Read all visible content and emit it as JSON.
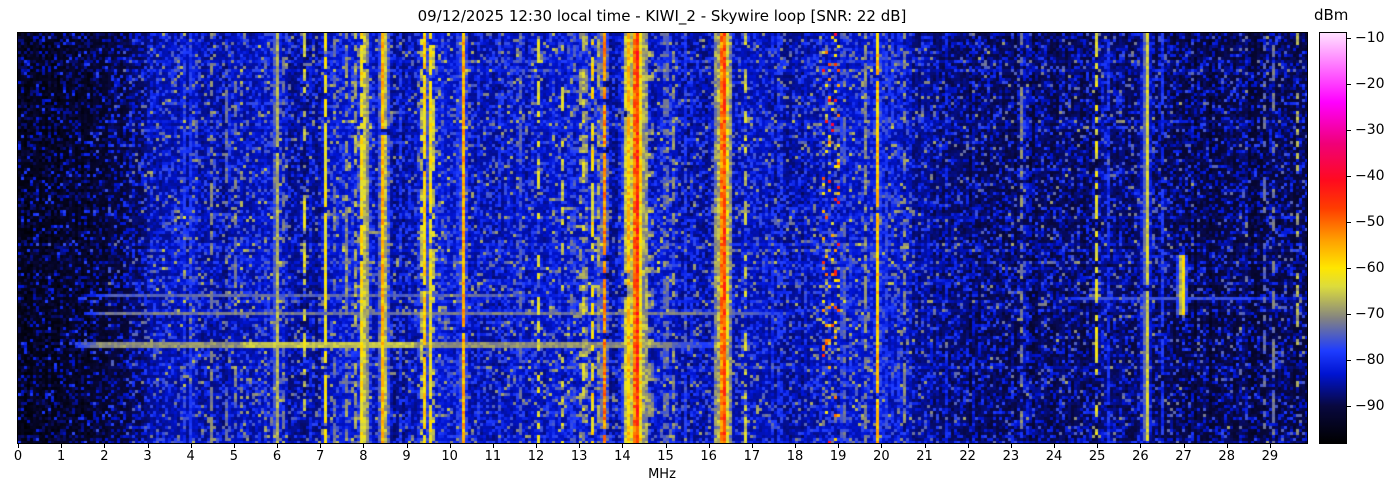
{
  "title": "09/12/2025 12:30 local time - KIWI_2 - Skywire loop [SNR: 22 dB]",
  "axis": {
    "xlabel": "MHz",
    "xticks": [
      0,
      1,
      2,
      3,
      4,
      5,
      6,
      7,
      8,
      9,
      10,
      11,
      12,
      13,
      14,
      15,
      16,
      17,
      18,
      19,
      20,
      21,
      22,
      23,
      24,
      25,
      26,
      27,
      28,
      29
    ]
  },
  "colorbar": {
    "label": "dBm",
    "vmin": -98,
    "vmax": -9,
    "ticks": [
      -10,
      -20,
      -30,
      -40,
      -50,
      -60,
      -70,
      -80,
      -90
    ],
    "tick_prefix": "−",
    "stops": [
      [
        -98,
        "#000000"
      ],
      [
        -90,
        "#08083f"
      ],
      [
        -83,
        "#0014d2"
      ],
      [
        -78,
        "#1e3cff"
      ],
      [
        -71,
        "#828282"
      ],
      [
        -64,
        "#dcdc3c"
      ],
      [
        -60,
        "#ffe600"
      ],
      [
        -54,
        "#ffa000"
      ],
      [
        -47,
        "#ff3c00"
      ],
      [
        -41,
        "#ff0a1e"
      ],
      [
        -33,
        "#f00078"
      ],
      [
        -24,
        "#ff00ff"
      ],
      [
        -9,
        "#ffe1ff"
      ]
    ]
  },
  "chart_data": {
    "type": "heatmap",
    "title": "09/12/2025 12:30 local time - KIWI_2 - Skywire loop [SNR: 22 dB]",
    "xlabel": "MHz",
    "x_range": [
      0,
      29.86
    ],
    "y_axis": "time (unlabeled, top = newest)",
    "value_unit": "dBm",
    "value_range": [
      -98,
      -9
    ],
    "seed": 42,
    "noise_floor_curve": [
      [
        0,
        -96.5
      ],
      [
        0.8,
        -96
      ],
      [
        1.6,
        -95
      ],
      [
        2.4,
        -93
      ],
      [
        2.8,
        -90
      ],
      [
        3.1,
        -87.5
      ],
      [
        3.6,
        -86
      ],
      [
        4.3,
        -86.5
      ],
      [
        4.7,
        -88
      ],
      [
        5.2,
        -86.5
      ],
      [
        5.5,
        -85.5
      ],
      [
        6.1,
        -86
      ],
      [
        6.35,
        -89
      ],
      [
        6.9,
        -88.5
      ],
      [
        7.1,
        -85.5
      ],
      [
        7.6,
        -84.5
      ],
      [
        8.15,
        -85
      ],
      [
        8.5,
        -88
      ],
      [
        8.8,
        -89
      ],
      [
        9.2,
        -86
      ],
      [
        9.5,
        -85
      ],
      [
        10.2,
        -85.5
      ],
      [
        10.6,
        -88
      ],
      [
        11.0,
        -87
      ],
      [
        11.5,
        -86
      ],
      [
        12.2,
        -86
      ],
      [
        12.9,
        -85.5
      ],
      [
        13.5,
        -86
      ],
      [
        13.75,
        -89.5
      ],
      [
        14.05,
        -88
      ],
      [
        14.5,
        -86
      ],
      [
        14.9,
        -85.5
      ],
      [
        15.5,
        -87.5
      ],
      [
        16.0,
        -88
      ],
      [
        16.6,
        -86.5
      ],
      [
        17.3,
        -87
      ],
      [
        18.3,
        -87.5
      ],
      [
        18.7,
        -86
      ],
      [
        19.3,
        -86
      ],
      [
        20.4,
        -86.5
      ],
      [
        21.0,
        -88.5
      ],
      [
        21.6,
        -90
      ],
      [
        22.3,
        -91
      ],
      [
        23.0,
        -91
      ],
      [
        23.8,
        -91.5
      ],
      [
        24.6,
        -91
      ],
      [
        25.3,
        -90
      ],
      [
        26.2,
        -90.5
      ],
      [
        27.0,
        -92
      ],
      [
        27.8,
        -92.5
      ],
      [
        28.6,
        -92
      ],
      [
        29.3,
        -92.5
      ],
      [
        29.9,
        -92
      ]
    ],
    "signals": [
      {
        "f": 5.98,
        "w": 0.035,
        "level": -60,
        "duty": 0.97,
        "jit": 3
      },
      {
        "f": 7.11,
        "w": 0.035,
        "level": -61,
        "duty": 0.9,
        "jit": 3
      },
      {
        "f": 7.95,
        "w": 0.055,
        "level": -61,
        "duty": 0.95,
        "jit": 4
      },
      {
        "f": 8.05,
        "w": 0.05,
        "level": -58,
        "duty": 0.97,
        "jit": 4
      },
      {
        "f": 8.46,
        "w": 0.04,
        "level": -50,
        "duty": 0.98,
        "jit": 4
      },
      {
        "f": 9.32,
        "w": 0.035,
        "level": -62,
        "duty": 0.6,
        "jit": 4
      },
      {
        "f": 9.41,
        "w": 0.045,
        "level": -59,
        "duty": 0.92,
        "jit": 4
      },
      {
        "f": 9.53,
        "w": 0.045,
        "level": -58,
        "duty": 0.95,
        "jit": 4
      },
      {
        "f": 9.63,
        "w": 0.035,
        "level": -63,
        "duty": 0.55,
        "jit": 4
      },
      {
        "f": 10.31,
        "w": 0.045,
        "level": -55,
        "duty": 0.97,
        "jit": 4
      },
      {
        "f": 13.12,
        "w": 0.035,
        "level": -57,
        "duty": 0.6,
        "jit": 5
      },
      {
        "f": 13.3,
        "w": 0.035,
        "level": -61,
        "duty": 0.55,
        "jit": 5
      },
      {
        "f": 13.57,
        "w": 0.04,
        "level": -52,
        "duty": 0.85,
        "jit": 5
      },
      {
        "f": 14.12,
        "w": 0.09,
        "level": -57,
        "duty": 0.95,
        "jit": 4
      },
      {
        "f": 14.32,
        "w": 0.09,
        "level": -44,
        "duty": 1.0,
        "jit": 5
      },
      {
        "f": 16.33,
        "w": 0.08,
        "level": -45,
        "duty": 1.0,
        "jit": 5
      },
      {
        "f": 19.9,
        "w": 0.04,
        "level": -57,
        "duty": 0.95,
        "jit": 4
      },
      {
        "f": 26.12,
        "w": 0.04,
        "level": -58,
        "duty": 0.97,
        "jit": 3
      },
      {
        "f": 26.95,
        "w": 0.045,
        "level": -52,
        "duty": 1.0,
        "jit": 3,
        "rows": [
          74,
          93
        ]
      },
      {
        "f": 4.85,
        "w": 0.03,
        "level": -67,
        "duty": 0.4,
        "jit": 3
      },
      {
        "f": 5.02,
        "w": 0.03,
        "level": -70,
        "duty": 0.4,
        "jit": 3
      },
      {
        "f": 6.62,
        "w": 0.035,
        "level": -63,
        "duty": 0.45,
        "jit": 4
      },
      {
        "f": 7.35,
        "w": 0.03,
        "level": -66,
        "duty": 0.4,
        "jit": 3
      },
      {
        "f": 7.58,
        "w": 0.035,
        "level": -64,
        "duty": 0.5,
        "jit": 3
      },
      {
        "f": 7.8,
        "w": 0.035,
        "level": -66,
        "duty": 0.45,
        "jit": 3
      },
      {
        "f": 12.05,
        "w": 0.035,
        "level": -63,
        "duty": 0.5,
        "jit": 3
      },
      {
        "f": 12.6,
        "w": 0.03,
        "level": -65,
        "duty": 0.4,
        "jit": 3
      },
      {
        "f": 12.85,
        "w": 0.03,
        "level": -66,
        "duty": 0.4,
        "jit": 3
      },
      {
        "f": 13.0,
        "w": 0.03,
        "level": -64,
        "duty": 0.45,
        "jit": 3
      },
      {
        "f": 13.42,
        "w": 0.03,
        "level": -65,
        "duty": 0.4,
        "jit": 3
      },
      {
        "f": 14.65,
        "w": 0.03,
        "level": -58,
        "duty": 0.3,
        "jit": 4
      },
      {
        "f": 15.0,
        "w": 0.035,
        "level": -62,
        "duty": 0.5,
        "jit": 3
      },
      {
        "f": 15.15,
        "w": 0.03,
        "level": -64,
        "duty": 0.3,
        "jit": 3
      },
      {
        "f": 16.85,
        "w": 0.035,
        "level": -64,
        "duty": 0.45,
        "jit": 3
      },
      {
        "f": 19.1,
        "w": 0.03,
        "level": -64,
        "duty": 0.5,
        "jit": 3
      },
      {
        "f": 19.62,
        "w": 0.055,
        "level": -70,
        "duty": 0.6,
        "jit": 3
      },
      {
        "f": 20.5,
        "w": 0.03,
        "level": -66,
        "duty": 0.35,
        "jit": 3
      },
      {
        "f": 23.25,
        "w": 0.03,
        "level": -66,
        "duty": 0.5,
        "jit": 3
      },
      {
        "f": 24.97,
        "w": 0.03,
        "level": -63,
        "duty": 0.55,
        "jit": 3
      },
      {
        "f": 29.62,
        "w": 0.03,
        "level": -68,
        "duty": 0.35,
        "jit": 3
      },
      {
        "f": 4.47,
        "w": 0.03,
        "level": -70,
        "duty": 0.5,
        "jit": 2
      },
      {
        "f": 6.15,
        "w": 0.03,
        "level": -72,
        "duty": 0.4,
        "jit": 2
      },
      {
        "f": 11.65,
        "w": 0.03,
        "level": -70,
        "duty": 0.5,
        "jit": 2
      },
      {
        "f": 17.7,
        "w": 0.03,
        "level": -71,
        "duty": 0.5,
        "jit": 2
      },
      {
        "f": 23.4,
        "w": 0.03,
        "level": -72,
        "duty": 0.45,
        "jit": 2
      },
      {
        "f": 28.85,
        "w": 0.03,
        "level": -73,
        "duty": 0.5,
        "jit": 2
      },
      {
        "f": 29.07,
        "w": 0.03,
        "level": -71,
        "duty": 0.45,
        "jit": 2
      },
      {
        "f": 3.2,
        "w": 0.04,
        "level": -80,
        "duty": 0.9,
        "jit": 3
      },
      {
        "f": 3.55,
        "w": 0.035,
        "level": -80,
        "duty": 0.8,
        "jit": 3
      },
      {
        "f": 3.85,
        "w": 0.03,
        "level": -78,
        "duty": 0.7,
        "jit": 3
      },
      {
        "f": 3.98,
        "w": 0.03,
        "level": -77,
        "duty": 0.8,
        "jit": 3
      },
      {
        "f": 5.55,
        "w": 0.035,
        "level": -79,
        "duty": 0.8,
        "jit": 3
      },
      {
        "f": 5.75,
        "w": 0.03,
        "level": -80,
        "duty": 0.7,
        "jit": 3
      },
      {
        "f": 6.79,
        "w": 0.03,
        "level": -79,
        "duty": 0.7,
        "jit": 3
      },
      {
        "f": 8.85,
        "w": 0.03,
        "level": -79,
        "duty": 0.6,
        "jit": 3
      },
      {
        "f": 9.05,
        "w": 0.03,
        "level": -80,
        "duty": 0.6,
        "jit": 3
      },
      {
        "f": 10.0,
        "w": 0.03,
        "level": -78,
        "duty": 0.7,
        "jit": 3
      },
      {
        "f": 10.65,
        "w": 0.03,
        "level": -80,
        "duty": 0.6,
        "jit": 3
      },
      {
        "f": 11.15,
        "w": 0.03,
        "level": -79,
        "duty": 0.7,
        "jit": 3
      },
      {
        "f": 11.45,
        "w": 0.03,
        "level": -80,
        "duty": 0.6,
        "jit": 3
      },
      {
        "f": 12.3,
        "w": 0.03,
        "level": -79,
        "duty": 0.6,
        "jit": 3
      },
      {
        "f": 15.45,
        "w": 0.03,
        "level": -79,
        "duty": 0.7,
        "jit": 3
      },
      {
        "f": 15.6,
        "w": 0.03,
        "level": -80,
        "duty": 0.6,
        "jit": 3
      },
      {
        "f": 17.45,
        "w": 0.03,
        "level": -79,
        "duty": 0.7,
        "jit": 3
      },
      {
        "f": 17.6,
        "w": 0.03,
        "level": -80,
        "duty": 0.6,
        "jit": 3
      },
      {
        "f": 18.25,
        "w": 0.03,
        "level": -80,
        "duty": 0.6,
        "jit": 3
      },
      {
        "f": 20.1,
        "w": 0.03,
        "level": -78,
        "duty": 0.7,
        "jit": 3
      },
      {
        "f": 20.25,
        "w": 0.03,
        "level": -79,
        "duty": 0.6,
        "jit": 3
      },
      {
        "f": 20.38,
        "w": 0.03,
        "level": -80,
        "duty": 0.6,
        "jit": 3
      },
      {
        "f": 21.05,
        "w": 0.03,
        "level": -79,
        "duty": 0.8,
        "jit": 3
      },
      {
        "f": 21.5,
        "w": 0.03,
        "level": -81,
        "duty": 0.5,
        "jit": 3
      },
      {
        "f": 22.1,
        "w": 0.03,
        "level": -81,
        "duty": 0.5,
        "jit": 3
      },
      {
        "f": 23.55,
        "w": 0.03,
        "level": -81,
        "duty": 0.5,
        "jit": 3
      },
      {
        "f": 25.25,
        "w": 0.03,
        "level": -79,
        "duty": 0.8,
        "jit": 3
      },
      {
        "f": 25.42,
        "w": 0.03,
        "level": -80,
        "duty": 0.7,
        "jit": 3
      },
      {
        "f": 26.5,
        "w": 0.03,
        "level": -79,
        "duty": 0.8,
        "jit": 3
      },
      {
        "f": 26.67,
        "w": 0.03,
        "level": -80,
        "duty": 0.6,
        "jit": 3
      },
      {
        "f": 27.85,
        "w": 0.03,
        "level": -81,
        "duty": 0.5,
        "jit": 3
      },
      {
        "f": 28.2,
        "w": 0.03,
        "level": -81,
        "duty": 0.5,
        "jit": 3
      }
    ],
    "speckle_clusters": [
      {
        "f1": 18.62,
        "f2": 19.06,
        "density": 0.2,
        "lmin": -80,
        "lmax": -38
      }
    ],
    "horizontal_bursts": [
      {
        "row": 87,
        "f1": 1.6,
        "f2": 12.6,
        "level": -74,
        "thick": 1
      },
      {
        "row": 93,
        "f1": 1.5,
        "f2": 18.0,
        "level": -72,
        "thick": 1
      },
      {
        "row": 103,
        "f1": 1.3,
        "f2": 16.2,
        "level": -70,
        "thick": 2,
        "hot": {
          "f1": 5.2,
          "f2": 9.2,
          "level": -66
        }
      },
      {
        "row": 88,
        "f1": 24.0,
        "f2": 29.9,
        "level": -77,
        "thick": 1
      }
    ]
  }
}
